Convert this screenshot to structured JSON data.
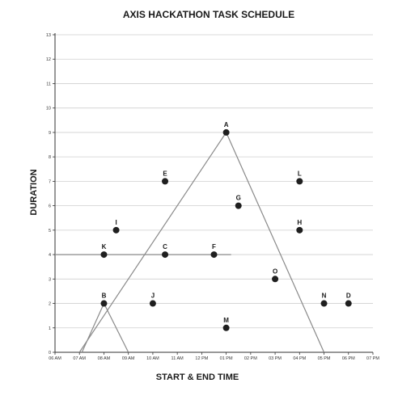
{
  "chart_data": {
    "type": "scatter",
    "title": "AXIS HACKATHON TASK SCHEDULE",
    "xlabel": "START & END TIME",
    "ylabel": "DURATION",
    "x_ticks": [
      "06 AM",
      "07 AM",
      "08 AM",
      "09 AM",
      "10 AM",
      "11 AM",
      "12 PM",
      "01 PM",
      "02 PM",
      "03 PM",
      "04 PM",
      "05 PM",
      "06 PM",
      "07 PM"
    ],
    "y_ticks": [
      "0",
      "1",
      "2",
      "3",
      "4",
      "5",
      "6",
      "7",
      "8",
      "9",
      "10",
      "11",
      "12",
      "13"
    ],
    "xlim": [
      6,
      19
    ],
    "ylim": [
      0,
      13
    ],
    "grid": "horizontal",
    "points": [
      {
        "label": "A",
        "x": 13.0,
        "y": 9.0
      },
      {
        "label": "B",
        "x": 8.0,
        "y": 2.0
      },
      {
        "label": "C",
        "x": 10.5,
        "y": 4.0
      },
      {
        "label": "D",
        "x": 18.0,
        "y": 2.0
      },
      {
        "label": "E",
        "x": 10.5,
        "y": 7.0
      },
      {
        "label": "F",
        "x": 12.5,
        "y": 4.0
      },
      {
        "label": "G",
        "x": 13.5,
        "y": 6.0
      },
      {
        "label": "H",
        "x": 16.0,
        "y": 5.0
      },
      {
        "label": "I",
        "x": 8.5,
        "y": 5.0
      },
      {
        "label": "J",
        "x": 10.0,
        "y": 2.0
      },
      {
        "label": "K",
        "x": 8.0,
        "y": 4.0
      },
      {
        "label": "L",
        "x": 16.0,
        "y": 7.0
      },
      {
        "label": "M",
        "x": 13.0,
        "y": 1.0
      },
      {
        "label": "N",
        "x": 17.0,
        "y": 2.0
      },
      {
        "label": "O",
        "x": 15.0,
        "y": 3.0
      }
    ],
    "lines": [
      {
        "points": [
          [
            7.0,
            0
          ],
          [
            13.0,
            9.0
          ],
          [
            17.0,
            0
          ]
        ]
      },
      {
        "points": [
          [
            7.1,
            0
          ],
          [
            8.0,
            2.0
          ],
          [
            9.0,
            0
          ]
        ]
      },
      {
        "points": [
          [
            6.0,
            4.0
          ],
          [
            13.2,
            4.0
          ]
        ]
      }
    ],
    "colors": {
      "points": "#1f1f1f",
      "lines": "#8a8a8a",
      "grid": "#cfcfcf",
      "axis": "#333333"
    }
  }
}
